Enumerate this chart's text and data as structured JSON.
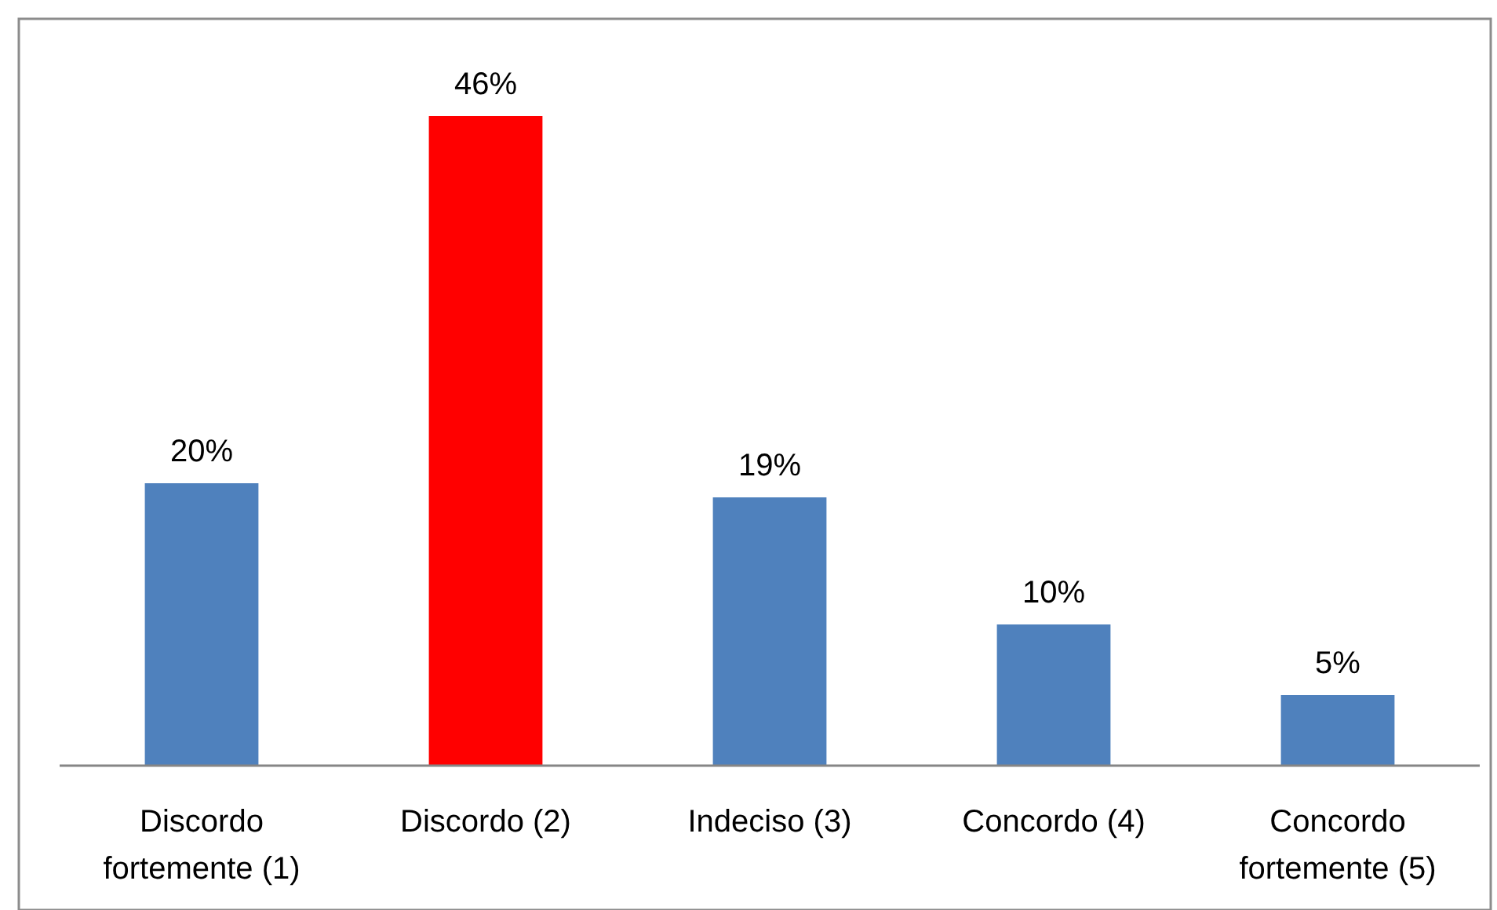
{
  "chart_data": {
    "type": "bar",
    "categories": [
      "Discordo fortemente (1)",
      "Discordo (2)",
      "Indeciso (3)",
      "Concordo (4)",
      "Concordo fortemente (5)"
    ],
    "values": [
      20,
      46,
      19,
      10,
      5
    ],
    "colors": [
      "#4f81bd",
      "#ff0000",
      "#4f81bd",
      "#4f81bd",
      "#4f81bd"
    ],
    "value_labels": [
      "20%",
      "46%",
      "19%",
      "10%",
      "5%"
    ]
  }
}
